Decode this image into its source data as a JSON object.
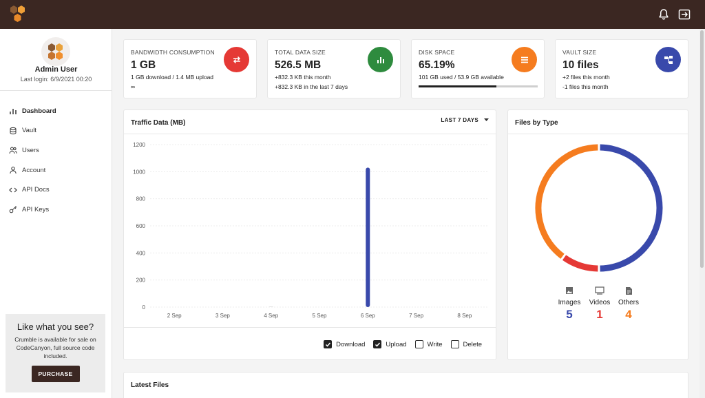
{
  "user": {
    "name": "Admin User",
    "last_login": "Last login: 6/9/2021 00:20"
  },
  "nav": [
    {
      "label": "Dashboard",
      "icon": "chart-bars-icon",
      "active": true
    },
    {
      "label": "Vault",
      "icon": "database-icon"
    },
    {
      "label": "Users",
      "icon": "users-icon"
    },
    {
      "label": "Account",
      "icon": "person-icon"
    },
    {
      "label": "API Docs",
      "icon": "code-icon"
    },
    {
      "label": "API Keys",
      "icon": "key-icon"
    }
  ],
  "promo": {
    "title": "Like what you see?",
    "text": "Crumble is available for sale on CodeCanyon, full source code included.",
    "button": "PURCHASE"
  },
  "stats": [
    {
      "label": "BANDWIDTH CONSUMPTION",
      "value": "1 GB",
      "line1": "1 GB download / 1.4 MB upload",
      "line2": "∞",
      "color": "#e53935",
      "icon": "transfer-arrows-icon"
    },
    {
      "label": "TOTAL DATA SIZE",
      "value": "526.5 MB",
      "line1": "+832.3 KB this month",
      "line2": "+832.3 KB in the last 7 days",
      "color": "#2e8b3e",
      "icon": "bar-chart-icon"
    },
    {
      "label": "DISK SPACE",
      "value": "65.19%",
      "line1": "101 GB used / 53.9 GB available",
      "line2": "",
      "color": "#f57c1f",
      "icon": "list-icon",
      "progress": 0.652
    },
    {
      "label": "VAULT SIZE",
      "value": "10 files",
      "line1": "+2 files this month",
      "line2": "-1 files this month",
      "color": "#3949ab",
      "icon": "sitemap-icon"
    }
  ],
  "traffic": {
    "title": "Traffic Data (MB)",
    "range": "LAST 7 DAYS",
    "legend": [
      {
        "label": "Download",
        "checked": true
      },
      {
        "label": "Upload",
        "checked": true
      },
      {
        "label": "Write",
        "checked": false
      },
      {
        "label": "Delete",
        "checked": false
      }
    ]
  },
  "chart_data": {
    "type": "bar",
    "categories": [
      "2 Sep",
      "3 Sep",
      "4 Sep",
      "5 Sep",
      "6 Sep",
      "7 Sep",
      "8 Sep"
    ],
    "series": [
      {
        "name": "Download",
        "values": [
          0,
          0,
          1,
          0,
          1030,
          0,
          0
        ],
        "color": "#3949ab"
      }
    ],
    "yticks": [
      0,
      200,
      400,
      600,
      800,
      1000,
      1200
    ],
    "ylim": [
      0,
      1200
    ],
    "grid": true
  },
  "files_by_type": {
    "title": "Files by Type",
    "types": [
      {
        "label": "Images",
        "count": 5,
        "color": "#3949ab",
        "icon": "image-icon"
      },
      {
        "label": "Videos",
        "count": 1,
        "color": "#e53935",
        "icon": "monitor-icon"
      },
      {
        "label": "Others",
        "count": 4,
        "color": "#f57c1f",
        "icon": "document-icon"
      }
    ]
  },
  "latest_files": {
    "title": "Latest Files"
  }
}
